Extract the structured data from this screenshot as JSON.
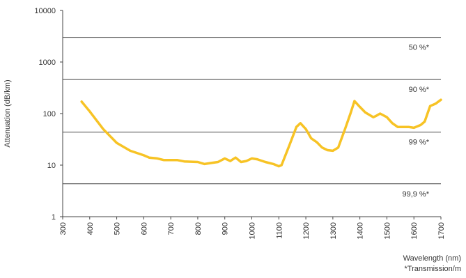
{
  "chart_data": {
    "type": "line",
    "scale": "log",
    "y_label": "Attenuation (dB/km)",
    "x_label": "Wavelength (nm)",
    "note": "*Transmission/m",
    "x": [
      370,
      400,
      450,
      500,
      550,
      600,
      620,
      650,
      675,
      700,
      725,
      750,
      800,
      825,
      850,
      875,
      900,
      920,
      940,
      960,
      980,
      1000,
      1020,
      1050,
      1080,
      1100,
      1110,
      1140,
      1165,
      1180,
      1200,
      1220,
      1240,
      1260,
      1280,
      1300,
      1320,
      1345,
      1365,
      1380,
      1400,
      1420,
      1450,
      1460,
      1475,
      1500,
      1520,
      1540,
      1560,
      1580,
      1600,
      1625,
      1640,
      1660,
      1680,
      1700
    ],
    "series": [
      {
        "color": "#f7c325",
        "values": [
          170,
          110,
          50,
          27,
          19,
          15.5,
          14,
          13.5,
          12.5,
          12.5,
          12.5,
          11.8,
          11.5,
          10.5,
          11,
          11.5,
          13.5,
          12,
          14,
          11.5,
          12,
          13.5,
          13,
          11.5,
          10.5,
          9.5,
          10,
          25,
          55,
          65,
          50,
          33,
          28,
          22,
          19.5,
          19,
          22,
          50,
          100,
          175,
          135,
          105,
          85,
          90,
          100,
          85,
          65,
          55,
          55,
          55,
          53,
          60,
          70,
          140,
          155,
          185
        ]
      }
    ],
    "reference_lines": [
      {
        "value": 3010,
        "label": "50 %*"
      },
      {
        "value": 457.6,
        "label": "90 %*"
      },
      {
        "value": 43.6,
        "label": "99 %*"
      },
      {
        "value": 4.345,
        "label": "99,9 %*"
      }
    ],
    "xlim": [
      300,
      1700
    ],
    "ylim": [
      1,
      10000
    ],
    "xticks": [
      300,
      400,
      500,
      600,
      700,
      800,
      900,
      1000,
      1100,
      1200,
      1300,
      1400,
      1500,
      1600,
      1700
    ],
    "yticks": [
      1,
      10,
      100,
      1000,
      10000
    ]
  }
}
